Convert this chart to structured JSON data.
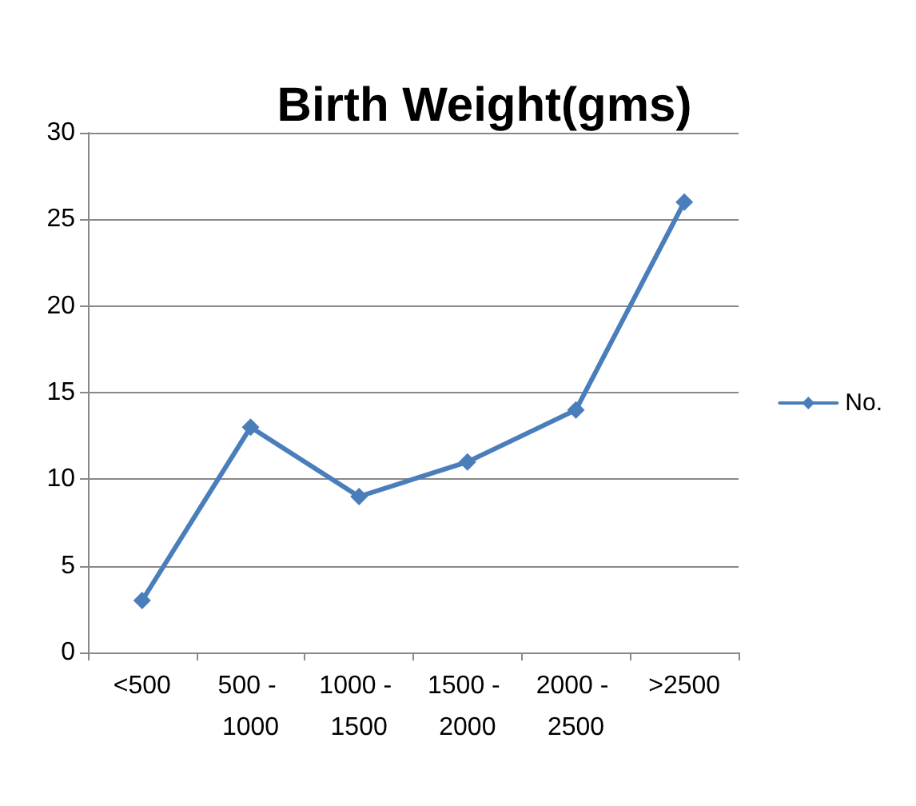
{
  "chart_data": {
    "type": "line",
    "title": "Birth Weight(gms)",
    "categories": [
      "<500",
      "500 - 1000",
      "1000 - 1500",
      "1500 - 2000",
      "2000 - 2500",
      ">2500"
    ],
    "series": [
      {
        "name": "No.",
        "color": "#4a7ebb",
        "values": [
          3,
          13,
          9,
          11,
          14,
          26
        ]
      }
    ],
    "ylim": [
      0,
      30
    ],
    "yticks": [
      0,
      5,
      10,
      15,
      20,
      25,
      30
    ],
    "grid": "y",
    "legend": "right",
    "marker": "diamond",
    "line_style": "solid"
  }
}
